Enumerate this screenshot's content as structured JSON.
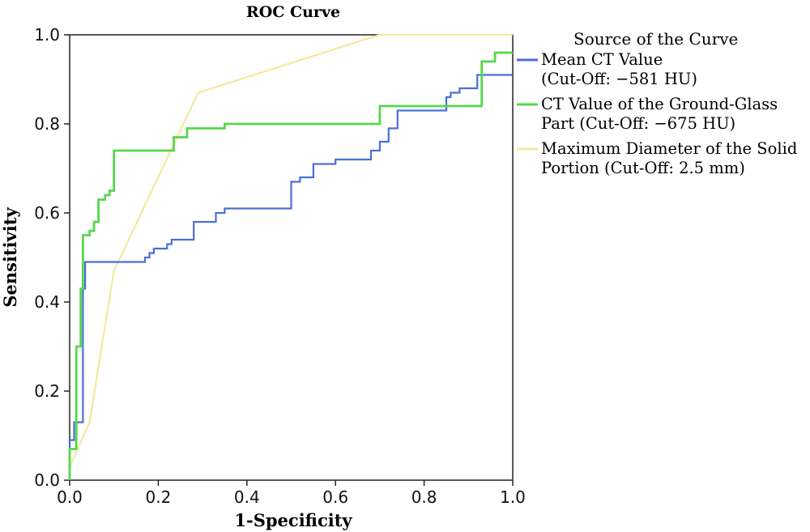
{
  "chart_data": {
    "type": "line",
    "title": "ROC Curve",
    "xlabel": "1-Specificity",
    "ylabel": "Sensitivity",
    "xlim": [
      0,
      1
    ],
    "ylim": [
      0,
      1
    ],
    "xticks": [
      "0.0",
      "0.2",
      "0.4",
      "0.6",
      "0.8",
      "1.0"
    ],
    "yticks": [
      "0.0",
      "0.2",
      "0.4",
      "0.6",
      "0.8",
      "1.0"
    ],
    "grid": false,
    "legend": {
      "title": "Source of the Curve",
      "placement": "right"
    },
    "series": [
      {
        "name": "Mean CT Value (Cut-Off: −581 HU)",
        "legend_lines": [
          "Mean CT Value",
          "(Cut-Off: −581 HU)"
        ],
        "color": "#4a6fd8",
        "x": [
          0,
          0,
          0.01,
          0.01,
          0.03,
          0.03,
          0.035,
          0.035,
          0.045,
          0.045,
          0.17,
          0.17,
          0.18,
          0.18,
          0.19,
          0.19,
          0.22,
          0.22,
          0.23,
          0.23,
          0.28,
          0.28,
          0.33,
          0.33,
          0.35,
          0.35,
          0.5,
          0.5,
          0.52,
          0.52,
          0.55,
          0.55,
          0.6,
          0.6,
          0.68,
          0.68,
          0.7,
          0.7,
          0.72,
          0.72,
          0.74,
          0.74,
          0.76,
          0.76,
          0.85,
          0.85,
          0.86,
          0.86,
          0.88,
          0.88,
          0.92,
          0.92,
          1.0
        ],
        "y": [
          0,
          0.09,
          0.09,
          0.13,
          0.13,
          0.43,
          0.43,
          0.49,
          0.49,
          0.49,
          0.49,
          0.5,
          0.5,
          0.51,
          0.51,
          0.52,
          0.52,
          0.53,
          0.53,
          0.54,
          0.54,
          0.58,
          0.58,
          0.6,
          0.6,
          0.61,
          0.61,
          0.67,
          0.67,
          0.68,
          0.68,
          0.71,
          0.71,
          0.72,
          0.72,
          0.74,
          0.74,
          0.76,
          0.76,
          0.79,
          0.79,
          0.83,
          0.83,
          0.83,
          0.83,
          0.86,
          0.86,
          0.87,
          0.87,
          0.88,
          0.88,
          0.91,
          0.91
        ]
      },
      {
        "name": "CT Value of the Ground-Glass Part (Cut-Off: −675 HU)",
        "legend_lines": [
          "CT Value of the Ground-Glass",
          "Part (Cut-Off: −675 HU)"
        ],
        "color": "#55d84a",
        "x": [
          0,
          0,
          0.015,
          0.015,
          0.025,
          0.025,
          0.03,
          0.03,
          0.045,
          0.045,
          0.055,
          0.055,
          0.065,
          0.065,
          0.08,
          0.08,
          0.09,
          0.09,
          0.1,
          0.1,
          0.235,
          0.235,
          0.265,
          0.265,
          0.28,
          0.28,
          0.35,
          0.35,
          0.7,
          0.7,
          0.93,
          0.93,
          0.96,
          0.96,
          1.0
        ],
        "y": [
          0,
          0.07,
          0.07,
          0.3,
          0.3,
          0.43,
          0.43,
          0.55,
          0.55,
          0.56,
          0.56,
          0.58,
          0.58,
          0.63,
          0.63,
          0.64,
          0.64,
          0.65,
          0.65,
          0.74,
          0.74,
          0.77,
          0.77,
          0.79,
          0.79,
          0.79,
          0.79,
          0.8,
          0.8,
          0.84,
          0.84,
          0.94,
          0.94,
          0.96,
          0.96
        ]
      },
      {
        "name": "Maximum Diameter of the Solid Portion (Cut-Off: 2.5 mm)",
        "legend_lines": [
          "Maximum Diameter of the Solid",
          "Portion (Cut-Off: 2.5 mm)"
        ],
        "color": "#f2eaa0",
        "x": [
          0,
          0.045,
          0.1,
          0.29,
          0.7,
          1.0
        ],
        "y": [
          0.03,
          0.13,
          0.47,
          0.87,
          1.0,
          1.0
        ]
      }
    ]
  }
}
